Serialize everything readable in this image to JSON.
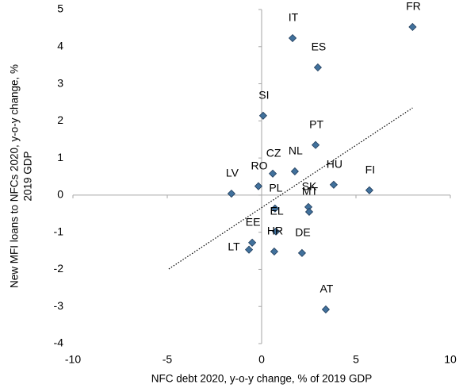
{
  "chart_data": {
    "type": "scatter",
    "xlabel": "NFC debt 2020, y-o-y change, % of 2019 GDP",
    "ylabel": [
      "New MFI loans to NFCs 2020, y-o-y change, %",
      "2019 GDP"
    ],
    "labels": [
      "FR",
      "IT",
      "ES",
      "SI",
      "PT",
      "NL",
      "CZ",
      "RO",
      "LV",
      "HU",
      "FI",
      "PL",
      "SK",
      "MT",
      "EL",
      "HR",
      "EE",
      "LT",
      "DE",
      "AT"
    ],
    "x": [
      8.0,
      1.64,
      2.98,
      0.08,
      2.86,
      1.76,
      0.59,
      -0.17,
      -1.6,
      3.82,
      5.71,
      0.71,
      2.48,
      2.52,
      0.76,
      0.67,
      -0.5,
      -0.67,
      2.14,
      3.4
    ],
    "y": [
      4.53,
      4.23,
      3.44,
      2.14,
      1.35,
      0.64,
      0.58,
      0.24,
      0.04,
      0.28,
      0.13,
      -0.36,
      -0.32,
      -0.45,
      -0.98,
      -1.52,
      -1.28,
      -1.47,
      -1.56,
      -3.08
    ],
    "color": "#41719c",
    "trendline": {
      "x": [
        -4.92,
        8.0
      ],
      "y": [
        -1.99,
        2.35
      ]
    },
    "xlim": [
      -10,
      10
    ],
    "xticks": [
      -10,
      -5,
      0,
      5,
      10
    ],
    "ylim": [
      -4,
      5
    ],
    "yticks": [
      -4,
      -3,
      -2,
      -1,
      0,
      1,
      2,
      3,
      4,
      5
    ]
  }
}
